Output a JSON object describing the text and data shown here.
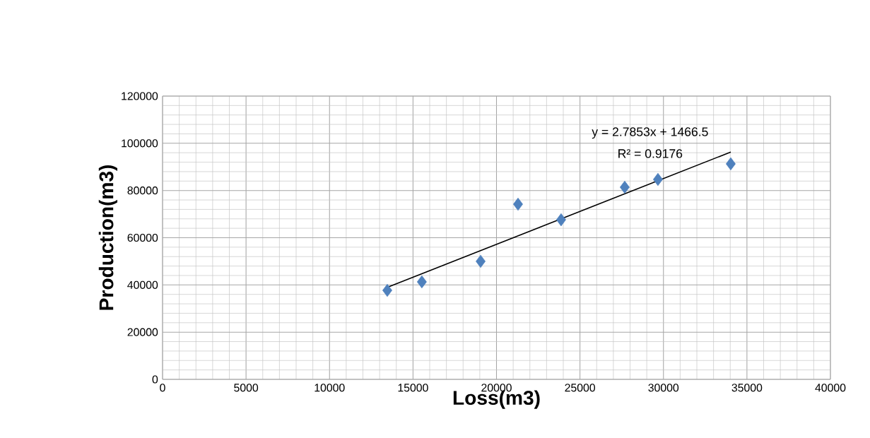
{
  "chart_data": {
    "type": "scatter",
    "xlabel": "Loss(m3)",
    "ylabel": "Production(m3)",
    "xlim": [
      0,
      40000
    ],
    "ylim": [
      0,
      120000
    ],
    "xticks": [
      0,
      5000,
      10000,
      15000,
      20000,
      25000,
      30000,
      35000,
      40000
    ],
    "yticks": [
      0,
      20000,
      40000,
      60000,
      80000,
      100000,
      120000
    ],
    "grid": true,
    "marker": "diamond",
    "series": [
      {
        "color": "#4f81bd",
        "x": [
          13460,
          15530,
          19050,
          21290,
          23870,
          27680,
          29670,
          34030
        ],
        "values": [
          37700,
          41300,
          50000,
          74200,
          67600,
          81400,
          84700,
          91300
        ]
      },
      {
        "type": "line",
        "color": "#000000",
        "marker": "none",
        "x": [
          13460,
          34030
        ],
        "values": [
          39000,
          96300
        ]
      }
    ],
    "annotations": [
      "y = 2.7853x + 1466.5",
      "R² = 0.9176"
    ]
  }
}
